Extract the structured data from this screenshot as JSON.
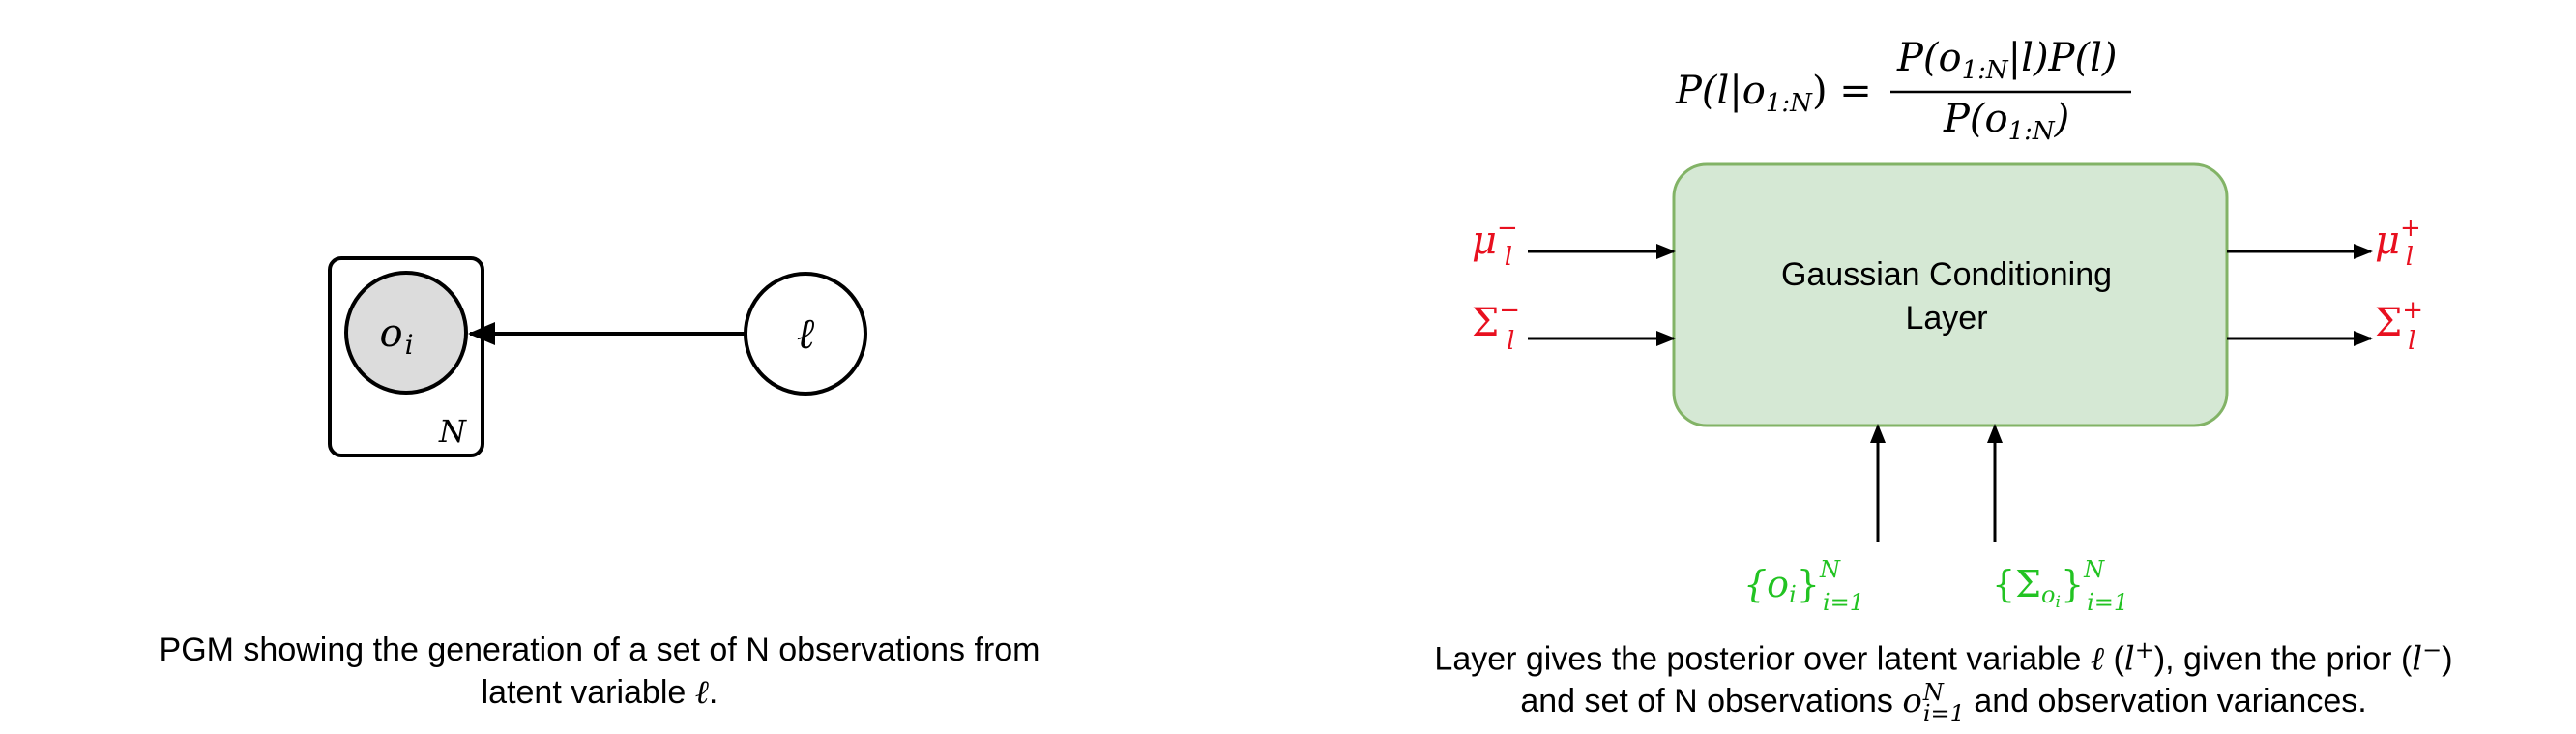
{
  "pgm": {
    "observed_node": "o",
    "observed_node_sub": "i",
    "plate_label": "N",
    "latent_node": "ℓ",
    "caption_line1": "PGM showing the generation of a set of N observations from",
    "caption_line2_prefix": "latent variable ",
    "caption_line2_var": "ℓ",
    "caption_line2_suffix": "."
  },
  "layer": {
    "equation": {
      "lhs": "P(l|o",
      "lhs_sub": "1:N",
      "lhs_close": ") =",
      "numerator_a": "P(o",
      "numerator_sub": "1:N",
      "numerator_b": "|l)P(l)",
      "denominator_a": "P(o",
      "denominator_sub": "1:N",
      "denominator_b": ")"
    },
    "box_label_line1": "Gaussian Conditioning",
    "box_label_line2": "Layer",
    "inputs": {
      "mu_base": "μ",
      "mu_sub": "l",
      "mu_sup": "−",
      "sigma_base": "Σ",
      "sigma_sub": "l",
      "sigma_sup": "−"
    },
    "outputs": {
      "mu_base": "μ",
      "mu_sub": "l",
      "mu_sup": "+",
      "sigma_base": "Σ",
      "sigma_sub": "l",
      "sigma_sup": "+"
    },
    "bottom_inputs": {
      "obs_set": "{o",
      "obs_set_inner_sub": "i",
      "obs_set_close": "}",
      "obs_set_sup": "N",
      "obs_set_sub": "i=1",
      "var_set": "{Σ",
      "var_set_inner_sub": "o",
      "var_set_inner_subsub": "i",
      "var_set_close": "}",
      "var_set_sup": "N",
      "var_set_sub": "i=1"
    },
    "caption_line1_a": "Layer gives the posterior over latent variable ",
    "caption_line1_var": "ℓ",
    "caption_line1_b": " (",
    "caption_line1_lplus": "l",
    "caption_line1_plus": "+",
    "caption_line1_c": "), given the prior (",
    "caption_line1_lminus": "l",
    "caption_line1_minus": "−",
    "caption_line1_d": ")",
    "caption_line2_a": "and set of N observations ",
    "caption_line2_o": "o",
    "caption_line2_sup": "N",
    "caption_line2_sub": "i=1",
    "caption_line2_b": " and observation variances."
  },
  "colors": {
    "box_fill": "#d5e8d4",
    "box_stroke": "#82b366",
    "red": "#e8101f",
    "green": "#22c322",
    "node_fill": "#dcdcdc",
    "black": "#000000"
  }
}
